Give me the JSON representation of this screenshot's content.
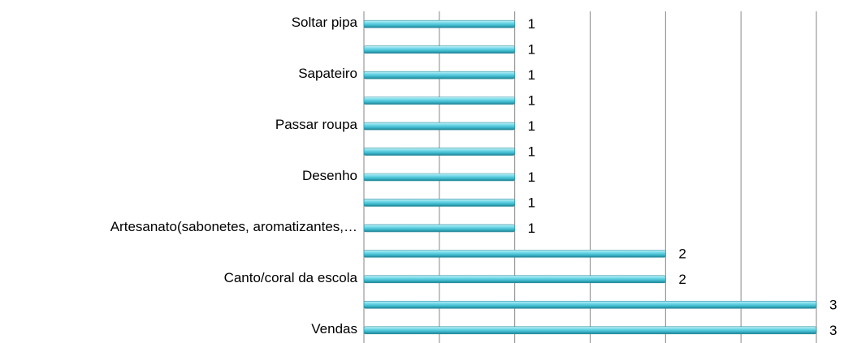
{
  "chart_data": {
    "type": "bar",
    "orientation": "horizontal",
    "categories": [
      "Soltar pipa",
      null,
      "Sapateiro",
      null,
      "Passar roupa",
      null,
      "Desenho",
      null,
      "Artesanato(sabonetes, aromatizantes,…",
      null,
      "Canto/coral da escola",
      null,
      "Vendas"
    ],
    "values": [
      1,
      1,
      1,
      1,
      1,
      1,
      1,
      1,
      1,
      2,
      2,
      3,
      3
    ],
    "color": "#4cc6d9",
    "xlim": [
      0,
      3
    ],
    "xticks": [
      0,
      0.5,
      1,
      1.5,
      2,
      2.5,
      3
    ],
    "grid": true
  }
}
